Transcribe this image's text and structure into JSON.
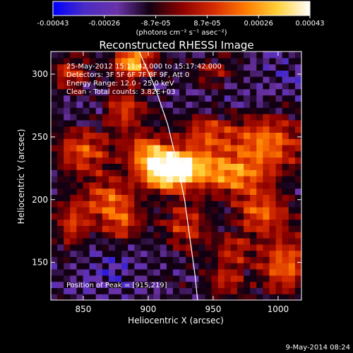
{
  "chart_data": {
    "type": "heatmap",
    "title": "Reconstructed RHESSI Image",
    "xlabel": "Heliocentric X (arcsec)",
    "ylabel": "Heliocentric Y (arcsec)",
    "xlim": [
      825,
      1018
    ],
    "ylim": [
      120,
      318
    ],
    "x_ticks": [
      850,
      900,
      950,
      1000
    ],
    "y_ticks": [
      150,
      200,
      250,
      300
    ],
    "colorbar": {
      "ticks": [
        "-0.00043",
        "-0.00026",
        "-8.7e-05",
        "8.7e-05",
        "0.00026",
        "0.00043"
      ],
      "unit_label": "(photons cm⁻² s⁻¹ asec⁻²)",
      "stops": [
        "#0000ff",
        "#4b2cc4",
        "#6b33a8",
        "#120012",
        "#8a0000",
        "#d62b00",
        "#ff7b00",
        "#ffd23a",
        "#ffffff"
      ]
    },
    "annotations": [
      "25-May-2012 15:11:42.000 to 15:17:42.000",
      "Detectors: 3F 5F 6F 7F 8F 9F, Att 0",
      "Energy Range: 12.0 - 25.0 keV",
      "Clean - Total counts: 3.82E+03"
    ],
    "peak_label": "Position of Peak = [915,219]",
    "peak": [
      915,
      219
    ],
    "limb": [
      [
        893,
        318
      ],
      [
        905,
        290
      ],
      [
        915,
        260
      ],
      [
        922,
        230
      ],
      [
        928,
        200
      ],
      [
        932,
        170
      ],
      [
        936,
        140
      ],
      [
        938,
        120
      ]
    ],
    "grid": {
      "cols": 39,
      "rows": 40,
      "blobs": [
        {
          "x": 915,
          "y": 222,
          "sx": 14,
          "sy": 10,
          "a": 1.0
        },
        {
          "x": 888,
          "y": 310,
          "sx": 10,
          "sy": 9,
          "a": 0.85
        },
        {
          "x": 930,
          "y": 228,
          "sx": 22,
          "sy": 10,
          "a": 0.55
        },
        {
          "x": 900,
          "y": 240,
          "sx": 12,
          "sy": 10,
          "a": 0.55
        },
        {
          "x": 990,
          "y": 245,
          "sx": 20,
          "sy": 16,
          "a": 0.65
        },
        {
          "x": 965,
          "y": 218,
          "sx": 18,
          "sy": 10,
          "a": 0.55
        },
        {
          "x": 850,
          "y": 240,
          "sx": 15,
          "sy": 14,
          "a": 0.55
        },
        {
          "x": 870,
          "y": 200,
          "sx": 14,
          "sy": 12,
          "a": 0.55
        },
        {
          "x": 880,
          "y": 272,
          "sx": 12,
          "sy": 12,
          "a": 0.55
        },
        {
          "x": 945,
          "y": 255,
          "sx": 14,
          "sy": 12,
          "a": 0.5
        },
        {
          "x": 985,
          "y": 190,
          "sx": 16,
          "sy": 12,
          "a": 0.6
        },
        {
          "x": 930,
          "y": 180,
          "sx": 14,
          "sy": 14,
          "a": 0.45
        },
        {
          "x": 1005,
          "y": 148,
          "sx": 14,
          "sy": 16,
          "a": 0.6
        },
        {
          "x": 965,
          "y": 160,
          "sx": 10,
          "sy": 10,
          "a": 0.4
        },
        {
          "x": 842,
          "y": 180,
          "sx": 10,
          "sy": 14,
          "a": 0.45
        },
        {
          "x": 950,
          "y": 300,
          "sx": 12,
          "sy": 10,
          "a": 0.35
        },
        {
          "x": 840,
          "y": 300,
          "sx": 10,
          "sy": 10,
          "a": 0.45
        },
        {
          "x": 880,
          "y": 180,
          "sx": 10,
          "sy": 10,
          "a": 0.45
        },
        {
          "x": 960,
          "y": 135,
          "sx": 10,
          "sy": 8,
          "a": 0.4
        }
      ],
      "cool_spots": [
        {
          "x": 870,
          "y": 140,
          "sx": 22,
          "sy": 18,
          "a": 0.6
        },
        {
          "x": 950,
          "y": 280,
          "sx": 20,
          "sy": 14,
          "a": 0.45
        },
        {
          "x": 860,
          "y": 270,
          "sx": 16,
          "sy": 14,
          "a": 0.4
        },
        {
          "x": 1005,
          "y": 300,
          "sx": 18,
          "sy": 16,
          "a": 0.45
        },
        {
          "x": 960,
          "y": 185,
          "sx": 14,
          "sy": 12,
          "a": 0.4
        }
      ]
    }
  },
  "footer_date": "9-May-2014 08:24"
}
